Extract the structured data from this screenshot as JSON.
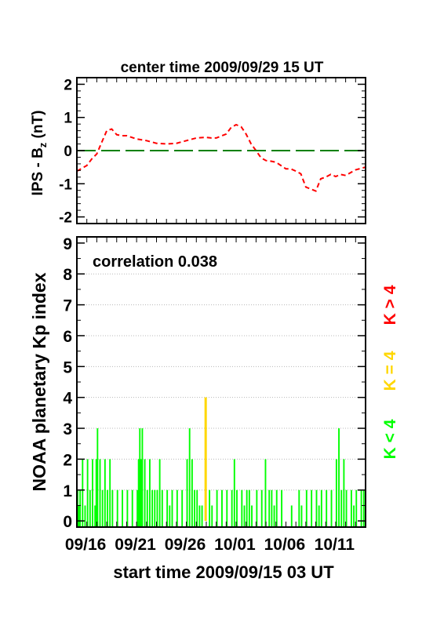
{
  "chart_data": [
    {
      "type": "line",
      "title": "center time 2009/09/29 15 UT",
      "ylabel_main": "IPS - B",
      "ylabel_sub": "z",
      "ylabel_unit": " (nT)",
      "ylim": [
        -2.2,
        2.2
      ],
      "y_ticks": [
        "2",
        "1",
        "0",
        "-1",
        "-2"
      ],
      "x_range_days": [
        0,
        29
      ],
      "series": [
        {
          "color": "#ff0000",
          "style": "dashed",
          "x": [
            0,
            1,
            1.5,
            2,
            2.5,
            3,
            3.5,
            4,
            4.5,
            5,
            6,
            7,
            8,
            9,
            10,
            11,
            12,
            13,
            13.5,
            14,
            15,
            15.5,
            16,
            16.5,
            17,
            17.5,
            18,
            18.5,
            19,
            19.5,
            20,
            21,
            21.5,
            22,
            22.5,
            23,
            24,
            24.5,
            25,
            25.5,
            26,
            26.5,
            27,
            28,
            29
          ],
          "y": [
            -0.62,
            -0.45,
            -0.25,
            -0.1,
            0.25,
            0.6,
            0.65,
            0.48,
            0.45,
            0.45,
            0.35,
            0.3,
            0.22,
            0.2,
            0.22,
            0.3,
            0.38,
            0.4,
            0.38,
            0.38,
            0.5,
            0.7,
            0.78,
            0.72,
            0.5,
            0.2,
            0.0,
            -0.22,
            -0.3,
            -0.32,
            -0.35,
            -0.55,
            -0.55,
            -0.62,
            -0.7,
            -1.1,
            -1.22,
            -0.85,
            -0.8,
            -0.72,
            -0.78,
            -0.72,
            -0.75,
            -0.58,
            -0.5
          ]
        },
        {
          "color": "#008000",
          "style": "long-dash",
          "x": [
            0,
            29
          ],
          "y": [
            0,
            0
          ]
        }
      ]
    },
    {
      "type": "bar",
      "ylabel": "NOAA planetary Kp index",
      "annotation": "correlation 0.038",
      "ylim": [
        -0.2,
        9.2
      ],
      "y_ticks": [
        "9",
        "8",
        "7",
        "6",
        "5",
        "4",
        "3",
        "2",
        "1",
        "0"
      ],
      "x_tick_labels": [
        "09/16",
        "09/21",
        "09/26",
        "10/01",
        "10/06",
        "10/11"
      ],
      "x_tick_days": [
        0.875,
        5.875,
        10.875,
        15.875,
        20.875,
        25.875
      ],
      "xlabel": "start time 2009/09/15 03 UT",
      "grid": true,
      "bar_width_days": 0.125,
      "bars": [
        [
          0.0,
          1
        ],
        [
          0.125,
          0.5
        ],
        [
          0.25,
          1
        ],
        [
          0.5,
          2
        ],
        [
          0.75,
          0.5
        ],
        [
          1.0,
          2
        ],
        [
          1.25,
          1
        ],
        [
          1.5,
          2
        ],
        [
          1.75,
          0.5
        ],
        [
          1.875,
          2
        ],
        [
          2.0,
          3
        ],
        [
          2.25,
          2
        ],
        [
          2.5,
          1
        ],
        [
          2.75,
          2
        ],
        [
          3.0,
          1
        ],
        [
          3.25,
          2
        ],
        [
          3.5,
          1
        ],
        [
          4.0,
          1
        ],
        [
          4.5,
          1
        ],
        [
          5.0,
          1
        ],
        [
          5.5,
          1
        ],
        [
          6.0,
          1
        ],
        [
          6.125,
          2
        ],
        [
          6.25,
          3
        ],
        [
          6.375,
          2
        ],
        [
          6.5,
          3
        ],
        [
          6.75,
          2
        ],
        [
          7.0,
          1
        ],
        [
          7.25,
          2
        ],
        [
          7.5,
          1
        ],
        [
          7.75,
          1
        ],
        [
          8.0,
          1
        ],
        [
          8.25,
          2
        ],
        [
          8.5,
          1
        ],
        [
          9.0,
          1
        ],
        [
          9.25,
          0.5
        ],
        [
          9.5,
          1
        ],
        [
          10.0,
          1
        ],
        [
          10.5,
          1
        ],
        [
          11.0,
          2
        ],
        [
          11.25,
          3
        ],
        [
          11.5,
          2
        ],
        [
          11.75,
          1
        ],
        [
          12.0,
          1
        ],
        [
          12.25,
          0.5
        ],
        [
          12.5,
          0.5
        ],
        [
          12.875,
          4
        ],
        [
          13.25,
          1
        ],
        [
          13.5,
          0.5
        ],
        [
          14.0,
          1
        ],
        [
          14.5,
          1
        ],
        [
          15.0,
          1
        ],
        [
          15.5,
          1
        ],
        [
          15.75,
          2
        ],
        [
          16.0,
          1
        ],
        [
          16.5,
          1
        ],
        [
          16.75,
          0.5
        ],
        [
          17.0,
          1
        ],
        [
          17.25,
          1
        ],
        [
          17.5,
          0.5
        ],
        [
          18.0,
          1
        ],
        [
          18.5,
          1
        ],
        [
          18.875,
          2
        ],
        [
          19.25,
          1
        ],
        [
          19.5,
          1
        ],
        [
          19.75,
          0.5
        ],
        [
          20.0,
          1
        ],
        [
          20.5,
          1
        ],
        [
          21.5,
          0.5
        ],
        [
          22.25,
          1
        ],
        [
          22.5,
          0.5
        ],
        [
          23.0,
          1
        ],
        [
          23.5,
          1
        ],
        [
          24.0,
          1
        ],
        [
          24.25,
          0.5
        ],
        [
          24.5,
          1
        ],
        [
          25.0,
          1
        ],
        [
          25.5,
          1
        ],
        [
          26.0,
          2
        ],
        [
          26.25,
          3
        ],
        [
          26.5,
          1
        ],
        [
          26.75,
          2
        ],
        [
          27.0,
          1
        ],
        [
          27.5,
          1
        ],
        [
          27.75,
          0.5
        ],
        [
          28.0,
          1
        ],
        [
          28.5,
          1
        ],
        [
          28.75,
          1
        ]
      ],
      "legend": [
        {
          "label": "K < 4",
          "color": "#00ff00"
        },
        {
          "label": "K = 4",
          "color": "#ffd700"
        },
        {
          "label": "K > 4",
          "color": "#ff0000"
        }
      ]
    }
  ]
}
